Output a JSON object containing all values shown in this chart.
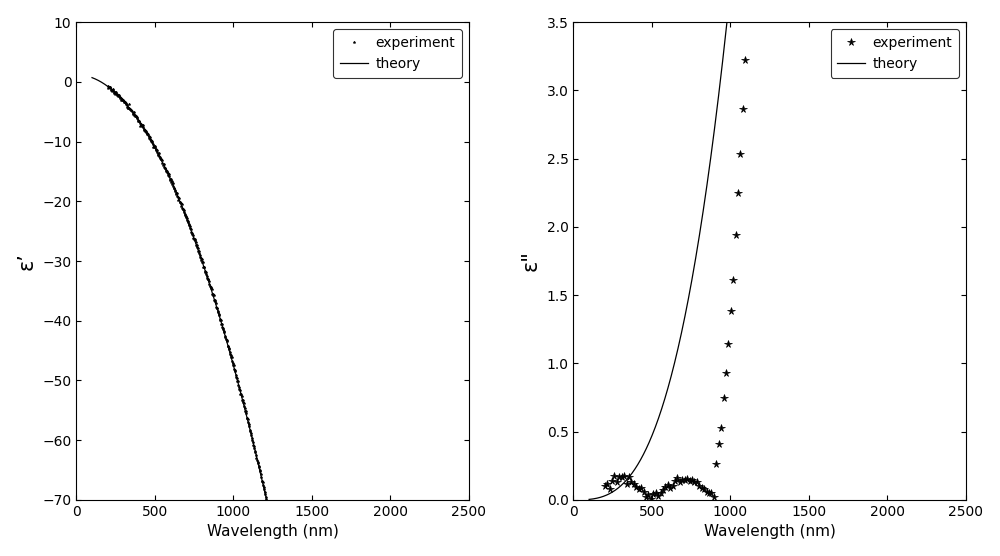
{
  "title": "",
  "background_color": "#ffffff",
  "fig_width": 10.0,
  "fig_height": 5.56,
  "dpi": 100,
  "left_plot": {
    "xlabel": "Wavelength (nm)",
    "ylabel": "ε’",
    "xlim": [
      0,
      2500
    ],
    "ylim": [
      -70,
      10
    ],
    "yticks": [
      10,
      0,
      -10,
      -20,
      -30,
      -40,
      -50,
      -60,
      -70
    ],
    "xticks": [
      0,
      500,
      1000,
      1500,
      2000,
      2500
    ],
    "legend_experiment": "experiment",
    "legend_theory": "theory",
    "marker": "*",
    "marker_color": "#000000",
    "line_color": "#000000"
  },
  "right_plot": {
    "xlabel": "Wavelength (nm)",
    "ylabel": "ε\"",
    "xlim": [
      0,
      2500
    ],
    "ylim": [
      0,
      3.5
    ],
    "yticks": [
      0,
      0.5,
      1.0,
      1.5,
      2.0,
      2.5,
      3.0,
      3.5
    ],
    "xticks": [
      0,
      500,
      1000,
      1500,
      2000,
      2500
    ],
    "legend_experiment": "experiment",
    "legend_theory": "theory",
    "marker": "*",
    "marker_color": "#000000",
    "line_color": "#000000"
  }
}
